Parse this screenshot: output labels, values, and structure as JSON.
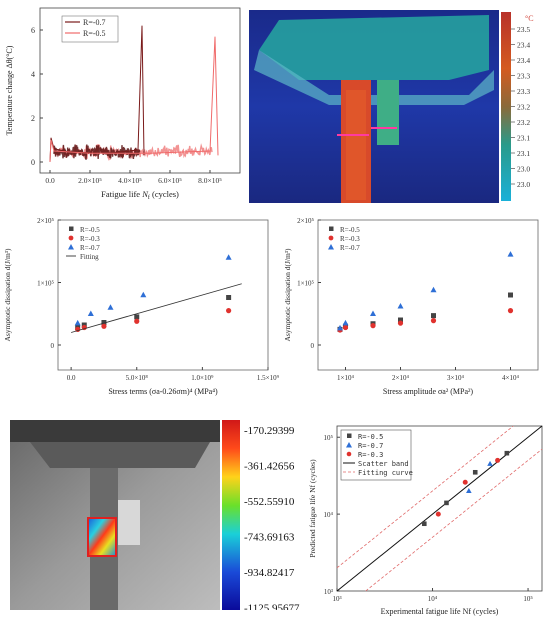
{
  "panel_a": {
    "ylabel": "Temperature change Δθ(°C)",
    "xlabel_main": "Fatigue life ",
    "xlabel_sym": "N",
    "xlabel_sub": "f",
    "xlabel_unit": " (cycles)",
    "legend": [
      "R=-0.7",
      "R=-0.5"
    ],
    "yticks": [
      "0",
      "2",
      "4",
      "6"
    ],
    "xticks": [
      "0.0",
      "2.0×10⁵",
      "4.0×10⁵",
      "6.0×10⁵",
      "8.0×10⁵"
    ]
  },
  "panel_b": {
    "unit": "°C",
    "colorbar_ticks": [
      "23.5",
      "23.4",
      "23.4",
      "23.3",
      "23.3",
      "23.2",
      "23.2",
      "23.1",
      "23.1",
      "23.0",
      "23.0"
    ]
  },
  "panel_c": {
    "title": "",
    "ylabel": "Asymptotic dissipation d(J/m³)",
    "xlabel": "Stress terms (σa-0.26σm)⁴ (MPa⁴)",
    "legend": [
      "R=-0.5",
      "R=-0.3",
      "R=-0.7",
      "Fitting"
    ],
    "yticks": [
      "0",
      "1×10⁵",
      "2×10⁵"
    ],
    "xticks": [
      "0.0",
      "5.0×10⁸",
      "1.0×10⁹",
      "1.5×10⁹"
    ]
  },
  "panel_d": {
    "ylabel": "Asymptotic dissipation d(J/m³)",
    "xlabel": "Stress amplitude σa² (MPa²)",
    "legend": [
      "R=-0.5",
      "R=-0.3",
      "R=-0.7"
    ],
    "yticks": [
      "0",
      "1×10⁵",
      "2×10⁵"
    ],
    "xticks": [
      "1×10⁴",
      "2×10⁴",
      "3×10⁴",
      "4×10⁴"
    ]
  },
  "panel_e": {
    "colorbar_labels": [
      "-170.29399",
      "-361.42656",
      "-552.55910",
      "-743.69163",
      "-934.82417",
      "-1125.95677"
    ]
  },
  "panel_f": {
    "ylabel": "Predicted fatigue life Nf (cycles)",
    "xlabel": "Experimental fatigue life Nf (cycles)",
    "legend": [
      "R=-0.5",
      "R=-0.7",
      "R=-0.3",
      "Scatter band",
      "Fitting curve"
    ],
    "ticks": [
      "10³",
      "10⁴",
      "10⁵"
    ]
  },
  "colors": {
    "red": "#e0322e",
    "blue": "#2e6fd6",
    "black": "#333333",
    "pink": "#e06a6a"
  },
  "chart_data": [
    {
      "type": "line",
      "panel": "a",
      "series": [
        {
          "name": "R=-0.7",
          "points": [
            [
              0,
              0.0
            ],
            [
              5000,
              1.1
            ],
            [
              20000,
              0.6
            ],
            [
              100000,
              0.45
            ],
            [
              300000,
              0.4
            ],
            [
              440000,
              0.55
            ],
            [
              460000,
              6.2
            ],
            [
              470000,
              0.3
            ]
          ]
        },
        {
          "name": "R=-0.5",
          "points": [
            [
              0,
              0.0
            ],
            [
              5000,
              1.0
            ],
            [
              20000,
              0.5
            ],
            [
              200000,
              0.4
            ],
            [
              500000,
              0.4
            ],
            [
              800000,
              0.5
            ],
            [
              825000,
              5.7
            ],
            [
              840000,
              0.3
            ]
          ]
        }
      ],
      "ylim": [
        -0.5,
        7
      ],
      "xlim": [
        -50000,
        950000
      ]
    },
    {
      "type": "scatter",
      "panel": "c",
      "series": [
        {
          "name": "R=-0.5",
          "x": [
            50000000.0,
            100000000.0,
            250000000.0,
            500000000.0,
            1200000000.0
          ],
          "y": [
            28000.0,
            32000.0,
            36000.0,
            45000.0,
            76000.0
          ]
        },
        {
          "name": "R=-0.3",
          "x": [
            50000000.0,
            100000000.0,
            250000000.0,
            500000000.0,
            1200000000.0
          ],
          "y": [
            25000.0,
            28000.0,
            30000.0,
            38000.0,
            55000.0
          ]
        },
        {
          "name": "R=-0.7",
          "x": [
            50000000.0,
            150000000.0,
            300000000.0,
            550000000.0,
            1200000000.0
          ],
          "y": [
            35000.0,
            50000.0,
            60000.0,
            80000.0,
            140000.0
          ]
        },
        {
          "name": "Fitting",
          "x": [
            0,
            1300000000.0
          ],
          "y": [
            20000.0,
            98000.0
          ]
        }
      ],
      "xlim": [
        -100000000.0,
        1500000000.0
      ],
      "ylim": [
        -40000.0,
        200000.0
      ]
    },
    {
      "type": "scatter",
      "panel": "d",
      "series": [
        {
          "name": "R=-0.5",
          "x": [
            9000,
            10000,
            15000,
            20000,
            26000,
            40000
          ],
          "y": [
            25000.0,
            30000.0,
            34000.0,
            40000.0,
            47000.0,
            80000.0
          ]
        },
        {
          "name": "R=-0.3",
          "x": [
            9000,
            10000,
            15000,
            20000,
            26000,
            40000
          ],
          "y": [
            24000.0,
            28000.0,
            31000.0,
            35000.0,
            39000.0,
            55000.0
          ]
        },
        {
          "name": "R=-0.7",
          "x": [
            9000,
            10000,
            15000,
            20000,
            26000,
            40000
          ],
          "y": [
            27000.0,
            35000.0,
            50000.0,
            62000.0,
            88000.0,
            145000.0
          ]
        }
      ],
      "xlim": [
        5000,
        45000
      ],
      "ylim": [
        -40000.0,
        200000.0
      ]
    },
    {
      "type": "scatter",
      "panel": "f",
      "series": [
        {
          "name": "R=-0.5",
          "x": [
            8200,
            14000,
            28000,
            60000
          ],
          "y": [
            7500,
            14000,
            35000,
            62000
          ]
        },
        {
          "name": "R=-0.7",
          "x": [
            24000,
            40000
          ],
          "y": [
            20000,
            45000
          ]
        },
        {
          "name": "R=-0.3",
          "x": [
            11500,
            22000,
            48000
          ],
          "y": [
            10000,
            26000,
            50000
          ]
        }
      ],
      "xlim": [
        1000,
        140000
      ],
      "ylim": [
        1000,
        140000
      ],
      "scale": "log"
    }
  ]
}
